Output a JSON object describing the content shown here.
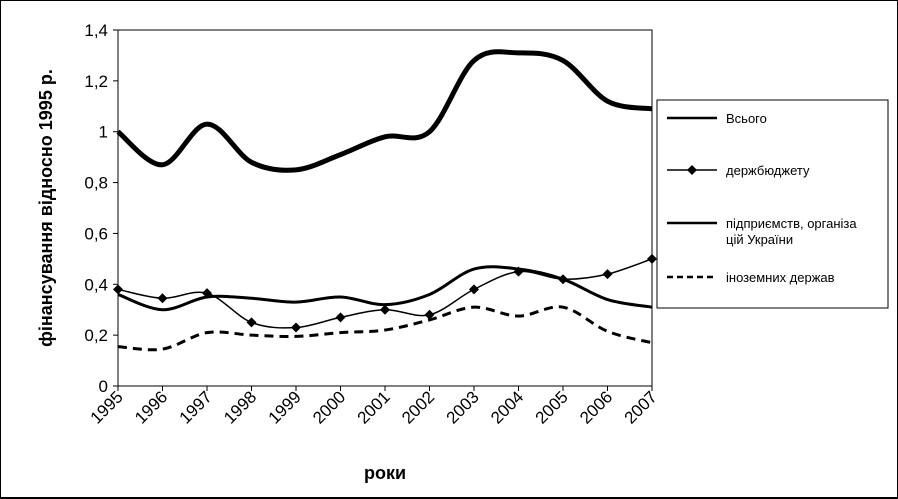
{
  "chart_data": {
    "type": "line",
    "xlabel": "роки",
    "ylabel": "фінансування відносно 1995 р.",
    "categories": [
      "1995",
      "1996",
      "1997",
      "1998",
      "1999",
      "2000",
      "2001",
      "2002",
      "2003",
      "2004",
      "2005",
      "2006",
      "2007"
    ],
    "ylim": [
      0,
      1.4
    ],
    "yticks": [
      "0",
      "0,2",
      "0,4",
      "0,6",
      "0,8",
      "1",
      "1,2",
      "1,4"
    ],
    "grid": false,
    "legend_position": "right",
    "series": [
      {
        "name": "Всього",
        "style": "thick-solid",
        "values": [
          1.0,
          0.87,
          1.03,
          0.88,
          0.85,
          0.91,
          0.98,
          1.0,
          1.28,
          1.31,
          1.28,
          1.12,
          1.09
        ]
      },
      {
        "name": "держбюджету",
        "style": "diamond-markers",
        "values": [
          0.38,
          0.345,
          0.365,
          0.25,
          0.23,
          0.27,
          0.3,
          0.28,
          0.38,
          0.45,
          0.42,
          0.44,
          0.5
        ]
      },
      {
        "name": "підприємств, організа цій України",
        "style": "solid",
        "values": [
          0.36,
          0.3,
          0.35,
          0.345,
          0.33,
          0.35,
          0.32,
          0.36,
          0.46,
          0.46,
          0.42,
          0.34,
          0.31
        ]
      },
      {
        "name": "іноземних держав",
        "style": "dashed",
        "values": [
          0.155,
          0.145,
          0.21,
          0.2,
          0.195,
          0.21,
          0.22,
          0.26,
          0.31,
          0.275,
          0.31,
          0.215,
          0.17
        ]
      }
    ]
  }
}
